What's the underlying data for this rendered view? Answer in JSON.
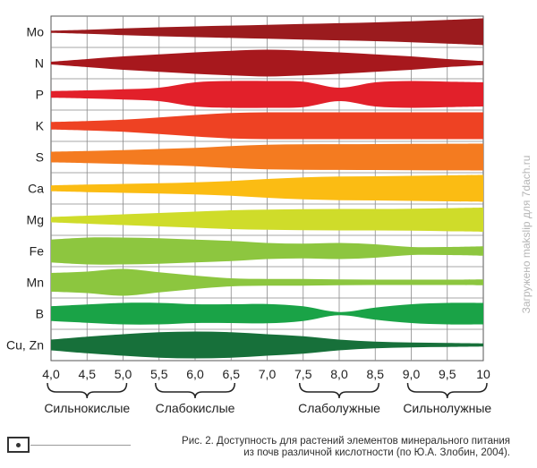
{
  "chart_data": {
    "type": "area",
    "title": "",
    "xlabel": "",
    "ylabel": "",
    "x_ticks": [
      "4,0",
      "4,5",
      "5,0",
      "5,5",
      "6,0",
      "6,5",
      "7,0",
      "7,5",
      "8,0",
      "8,5",
      "9,0",
      "9,5",
      "10"
    ],
    "xlim": [
      4.0,
      10.0
    ],
    "grid": true,
    "x": [
      4.0,
      4.5,
      5.0,
      5.5,
      6.0,
      6.5,
      7.0,
      7.5,
      8.0,
      8.5,
      9.0,
      9.5,
      10.0
    ],
    "series": [
      {
        "name": "Mo",
        "color": "#9b1b1e",
        "values": [
          0.08,
          0.15,
          0.25,
          0.33,
          0.4,
          0.46,
          0.52,
          0.58,
          0.64,
          0.7,
          0.78,
          0.88,
          1.0
        ]
      },
      {
        "name": "N",
        "color": "#a7181d",
        "values": [
          0.1,
          0.3,
          0.5,
          0.65,
          0.8,
          0.92,
          1.0,
          0.92,
          0.8,
          0.65,
          0.5,
          0.3,
          0.15
        ]
      },
      {
        "name": "P",
        "color": "#e2202a",
        "values": [
          0.25,
          0.3,
          0.38,
          0.5,
          0.9,
          1.0,
          1.0,
          0.95,
          0.5,
          0.9,
          1.0,
          0.95,
          0.9
        ]
      },
      {
        "name": "K",
        "color": "#ee4223",
        "values": [
          0.28,
          0.35,
          0.45,
          0.62,
          0.8,
          0.95,
          1.0,
          1.0,
          1.0,
          1.0,
          1.0,
          1.0,
          1.0
        ]
      },
      {
        "name": "S",
        "color": "#f47b20",
        "values": [
          0.4,
          0.45,
          0.52,
          0.6,
          0.68,
          0.82,
          0.92,
          0.95,
          0.96,
          0.97,
          0.98,
          0.99,
          1.0
        ]
      },
      {
        "name": "Ca",
        "color": "#fbbc13",
        "values": [
          0.22,
          0.28,
          0.33,
          0.38,
          0.45,
          0.55,
          0.7,
          0.82,
          0.88,
          0.9,
          0.93,
          0.97,
          1.0
        ]
      },
      {
        "name": "Mg",
        "color": "#cfdc2a",
        "values": [
          0.2,
          0.3,
          0.4,
          0.5,
          0.6,
          0.7,
          0.75,
          0.78,
          0.8,
          0.8,
          0.82,
          0.86,
          0.9
        ]
      },
      {
        "name": "Fe",
        "color": "#8dc63f",
        "values": [
          0.85,
          1.0,
          1.0,
          0.95,
          0.85,
          0.75,
          0.6,
          0.55,
          0.6,
          0.5,
          0.3,
          0.3,
          0.35
        ]
      },
      {
        "name": "Mn",
        "color": "#8cc63f",
        "values": [
          0.7,
          0.8,
          1.0,
          0.75,
          0.5,
          0.3,
          0.25,
          0.25,
          0.22,
          0.2,
          0.2,
          0.2,
          0.22
        ]
      },
      {
        "name": "B",
        "color": "#1aa347",
        "values": [
          0.55,
          0.68,
          0.8,
          0.8,
          0.7,
          0.7,
          0.72,
          0.55,
          0.12,
          0.45,
          0.7,
          0.8,
          0.8
        ]
      },
      {
        "name": "Cu, Zn",
        "color": "#17703a",
        "values": [
          0.4,
          0.62,
          0.8,
          0.95,
          1.0,
          0.95,
          0.8,
          0.65,
          0.4,
          0.25,
          0.18,
          0.15,
          0.12
        ]
      }
    ],
    "ranges": [
      {
        "label": "Сильнокислые",
        "from": 4.0,
        "to": 5.0
      },
      {
        "label": "Слабокислые",
        "from": 5.5,
        "to": 6.5
      },
      {
        "label": "Слаболужные",
        "from": 7.5,
        "to": 8.5
      },
      {
        "label": "Сильнолужные",
        "from": 9.0,
        "to": 10.0
      }
    ]
  },
  "caption": {
    "line1": "Рис. 2. Доступность для растений элементов минерального питания",
    "line2": "из почв различной кислотности (по Ю.А. Злобин, 2004)."
  },
  "watermark": "Загружено makslip для 7dach.ru"
}
